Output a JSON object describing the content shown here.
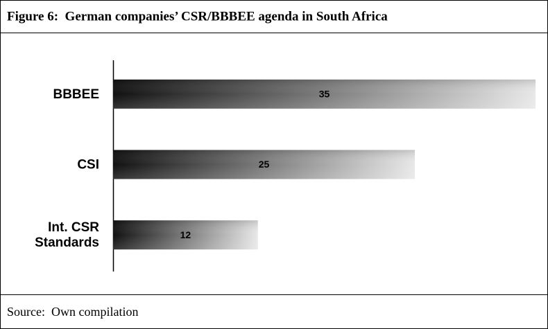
{
  "chart_data": {
    "type": "hbar",
    "title": "Figure 6:  German companies’ CSR/BBBEE agenda in South Africa",
    "source": "Source:  Own compilation",
    "categories": [
      "BBBEE",
      "CSI",
      "Int. CSR\nStandards"
    ],
    "values": [
      35,
      25,
      12
    ],
    "xlim": [
      0,
      35
    ],
    "gradient": [
      "#111111",
      "#e8e8e8"
    ]
  }
}
